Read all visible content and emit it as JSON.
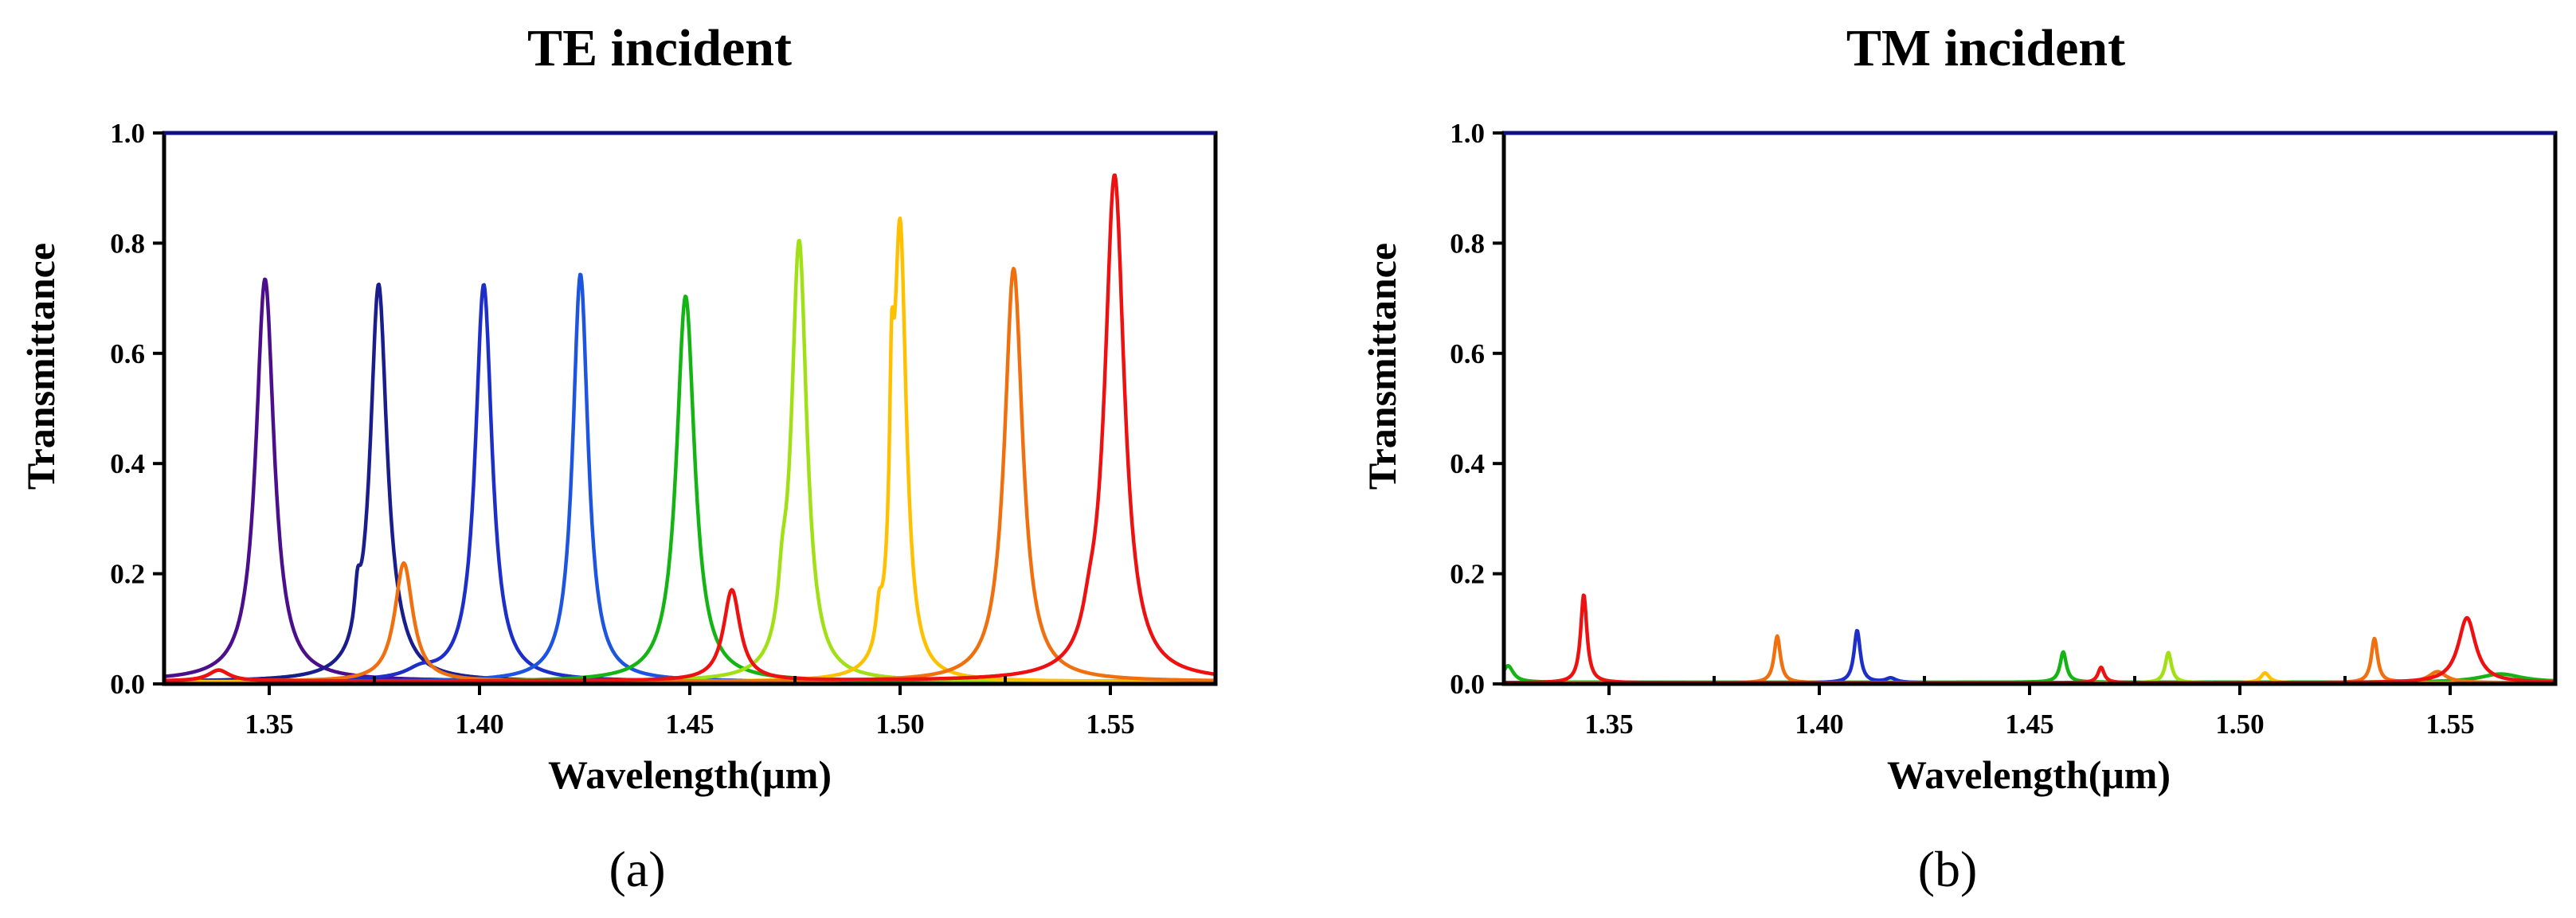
{
  "chart_data": [
    {
      "type": "line",
      "title": "TE incident",
      "xlabel": "Wavelength(μm)",
      "ylabel": "Transmittance",
      "panel_label": "(a)",
      "xlim": [
        1.325,
        1.575
      ],
      "ylim": [
        0,
        1.0
      ],
      "xticks": [
        1.35,
        1.4,
        1.45,
        1.5,
        1.55
      ],
      "xtick_labels": [
        "1.35",
        "1.40",
        "1.45",
        "1.50",
        "1.55"
      ],
      "yticks": [
        0.0,
        0.2,
        0.4,
        0.6,
        0.8,
        1.0
      ],
      "ytick_labels": [
        "0.0",
        "0.2",
        "0.4",
        "0.6",
        "0.8",
        "1.0"
      ],
      "grid": false,
      "series": [
        {
          "name": "purple",
          "color": "#4b0f8c",
          "base": 0.005,
          "peaks": [
            {
              "x": 1.349,
              "y": 0.73,
              "w": 0.0026
            }
          ]
        },
        {
          "name": "navy",
          "color": "#1a1e8c",
          "base": 0.004,
          "peaks": [
            {
              "x": 1.376,
              "y": 0.71,
              "w": 0.0024
            },
            {
              "x": 1.371,
              "y": 0.07,
              "w": 0.0008
            },
            {
              "x": 1.38,
              "y": 0.02,
              "w": 0.004
            }
          ]
        },
        {
          "name": "blue",
          "color": "#1d2fc8",
          "base": 0.004,
          "peaks": [
            {
              "x": 1.401,
              "y": 0.72,
              "w": 0.0024
            },
            {
              "x": 1.386,
              "y": 0.015,
              "w": 0.004
            }
          ]
        },
        {
          "name": "royal-blue",
          "color": "#1e55e0",
          "base": 0.004,
          "peaks": [
            {
              "x": 1.424,
              "y": 0.74,
              "w": 0.0022
            }
          ]
        },
        {
          "name": "green",
          "color": "#14b414",
          "base": 0.004,
          "peaks": [
            {
              "x": 1.449,
              "y": 0.7,
              "w": 0.0026
            }
          ]
        },
        {
          "name": "yellow-green",
          "color": "#a0e014",
          "base": 0.004,
          "peaks": [
            {
              "x": 1.476,
              "y": 0.795,
              "w": 0.0022
            },
            {
              "x": 1.472,
              "y": 0.08,
              "w": 0.0012
            }
          ]
        },
        {
          "name": "gold",
          "color": "#ffc000",
          "base": 0.004,
          "peaks": [
            {
              "x": 1.5,
              "y": 0.815,
              "w": 0.0018
            },
            {
              "x": 1.498,
              "y": 0.3,
              "w": 0.0006
            },
            {
              "x": 1.495,
              "y": 0.06,
              "w": 0.0008
            }
          ]
        },
        {
          "name": "orange",
          "color": "#f07010",
          "base": 0.004,
          "peaks": [
            {
              "x": 1.382,
              "y": 0.215,
              "w": 0.0026
            },
            {
              "x": 1.527,
              "y": 0.75,
              "w": 0.0026
            },
            {
              "x": 1.338,
              "y": 0.02,
              "w": 0.003
            }
          ]
        },
        {
          "name": "red",
          "color": "#ee1111",
          "base": 0.005,
          "peaks": [
            {
              "x": 1.46,
              "y": 0.165,
              "w": 0.0024
            },
            {
              "x": 1.551,
              "y": 0.915,
              "w": 0.0028
            },
            {
              "x": 1.545,
              "y": 0.04,
              "w": 0.002
            },
            {
              "x": 1.338,
              "y": 0.02,
              "w": 0.003
            }
          ]
        }
      ]
    },
    {
      "type": "line",
      "title": "TM incident",
      "xlabel": "Wavelength(μm)",
      "ylabel": "Transmittance",
      "panel_label": "(b)",
      "xlim": [
        1.325,
        1.575
      ],
      "ylim": [
        0,
        1.0
      ],
      "xticks": [
        1.35,
        1.4,
        1.45,
        1.5,
        1.55
      ],
      "xtick_labels": [
        "1.35",
        "1.40",
        "1.45",
        "1.50",
        "1.55"
      ],
      "yticks": [
        0.0,
        0.2,
        0.4,
        0.6,
        0.8,
        1.0
      ],
      "ytick_labels": [
        "0.0",
        "0.2",
        "0.4",
        "0.6",
        "0.8",
        "1.0"
      ],
      "grid": false,
      "series": [
        {
          "name": "green",
          "color": "#14b414",
          "base": 0.003,
          "peaks": [
            {
              "x": 1.326,
              "y": 0.03,
              "w": 0.0015
            },
            {
              "x": 1.458,
              "y": 0.055,
              "w": 0.0009
            },
            {
              "x": 1.562,
              "y": 0.015,
              "w": 0.006
            }
          ]
        },
        {
          "name": "blue",
          "color": "#1d2fc8",
          "base": 0.002,
          "peaks": [
            {
              "x": 1.409,
              "y": 0.095,
              "w": 0.0009
            },
            {
              "x": 1.417,
              "y": 0.008,
              "w": 0.0015
            }
          ]
        },
        {
          "name": "yellow-green",
          "color": "#a0e014",
          "base": 0.002,
          "peaks": [
            {
              "x": 1.483,
              "y": 0.055,
              "w": 0.0009
            }
          ]
        },
        {
          "name": "gold",
          "color": "#ffc000",
          "base": 0.002,
          "peaks": [
            {
              "x": 1.506,
              "y": 0.018,
              "w": 0.0012
            }
          ]
        },
        {
          "name": "orange",
          "color": "#f07010",
          "base": 0.002,
          "peaks": [
            {
              "x": 1.39,
              "y": 0.085,
              "w": 0.0009
            },
            {
              "x": 1.532,
              "y": 0.08,
              "w": 0.0009
            },
            {
              "x": 1.547,
              "y": 0.02,
              "w": 0.0025
            }
          ]
        },
        {
          "name": "red",
          "color": "#ee1111",
          "base": 0.002,
          "peaks": [
            {
              "x": 1.344,
              "y": 0.16,
              "w": 0.0009
            },
            {
              "x": 1.467,
              "y": 0.028,
              "w": 0.0009
            },
            {
              "x": 1.554,
              "y": 0.118,
              "w": 0.0025
            }
          ]
        }
      ]
    }
  ]
}
